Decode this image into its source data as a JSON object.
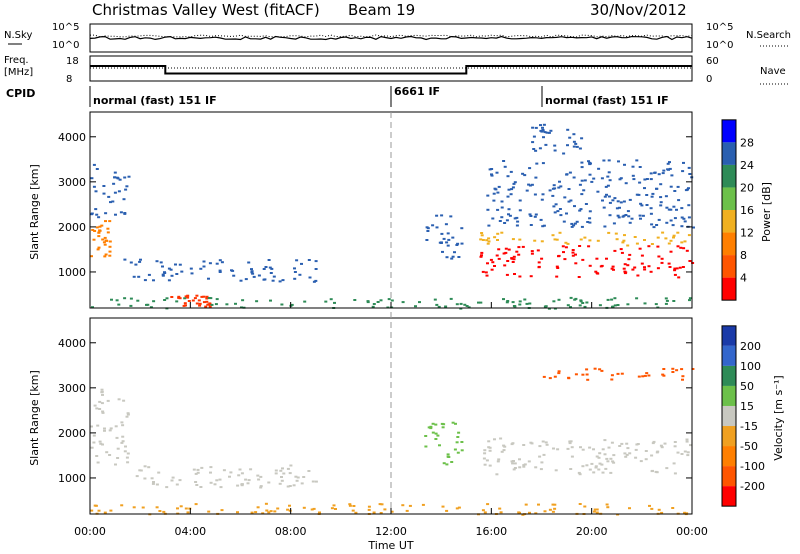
{
  "header": {
    "title": "Christmas Valley West (fitACF)",
    "beam": "Beam 19",
    "date": "30/Nov/2012"
  },
  "summary": {
    "nsky_label": "N.Sky",
    "nsky_ticks": [
      "10^5",
      "10^0"
    ],
    "nsearch_label": "N.Search",
    "nsearch_ticks": [
      "10^5",
      "10^0"
    ],
    "freq_label_line1": "Freq.",
    "freq_label_line2": "[MHz]",
    "freq_ticks": [
      "18",
      "8"
    ],
    "nave_label": "Nave",
    "nave_ticks": [
      "60",
      "0"
    ],
    "cpid_label": "CPID",
    "cpid_segments": [
      {
        "text": "normal (fast) 151 IF",
        "start_hour": 0
      },
      {
        "text": "6661 IF",
        "start_hour": 12
      },
      {
        "text": "normal (fast) 151 IF",
        "start_hour": 18
      }
    ],
    "frequency_profile": [
      [
        0,
        14
      ],
      [
        3,
        14
      ],
      [
        3,
        11
      ],
      [
        15,
        11
      ],
      [
        15,
        14
      ],
      [
        24,
        14
      ]
    ]
  },
  "chart_data": [
    {
      "type": "heatmap",
      "name": "power",
      "ylabel": "Slant Range [km]",
      "yticks": [
        1000,
        2000,
        3000,
        4000
      ],
      "ylim": [
        200,
        4550
      ],
      "xlim": [
        0,
        24
      ],
      "colorbar_label": "Power [dB]",
      "colorbar_ticks": [
        4,
        8,
        12,
        16,
        20,
        24,
        28
      ],
      "colorbar_colors": [
        "#0000ff",
        "#2a5fb0",
        "#2e8b57",
        "#6cc04a",
        "#f0b020",
        "#ff7f00",
        "#ff5500",
        "#ff0000"
      ],
      "regions": [
        {
          "t0": 0.0,
          "t1": 0.8,
          "r0": 1300,
          "r1": 2200,
          "color": "#ff7f00"
        },
        {
          "t0": 0.0,
          "t1": 1.5,
          "r0": 2200,
          "r1": 3400,
          "color": "#2a5fb0"
        },
        {
          "t0": 1.3,
          "t1": 9.0,
          "r0": 800,
          "r1": 1300,
          "color": "#2a5fb0"
        },
        {
          "t0": 3.2,
          "t1": 4.8,
          "r0": 250,
          "r1": 500,
          "color": "#ff3300"
        },
        {
          "t0": 0.0,
          "t1": 24.0,
          "r0": 200,
          "r1": 450,
          "color": "#2e8b57"
        },
        {
          "t0": 13.3,
          "t1": 14.8,
          "r0": 1300,
          "r1": 2300,
          "color": "#2a5fb0"
        },
        {
          "t0": 15.5,
          "t1": 24.0,
          "r0": 900,
          "r1": 1600,
          "color": "#ff0000"
        },
        {
          "t0": 15.5,
          "t1": 24.0,
          "r0": 1600,
          "r1": 1900,
          "color": "#f0b020"
        },
        {
          "t0": 15.8,
          "t1": 24.0,
          "r0": 2000,
          "r1": 3500,
          "color": "#2a5fb0"
        },
        {
          "t0": 17.5,
          "t1": 20.0,
          "r0": 3600,
          "r1": 4300,
          "color": "#2a5fb0"
        }
      ]
    },
    {
      "type": "heatmap",
      "name": "velocity",
      "ylabel": "Slant Range [km]",
      "yticks": [
        1000,
        2000,
        3000,
        4000
      ],
      "ylim": [
        200,
        4550
      ],
      "xlim": [
        0,
        24
      ],
      "xticks": [
        "00:00",
        "04:00",
        "08:00",
        "12:00",
        "16:00",
        "20:00",
        "00:00"
      ],
      "xlabel": "Time UT",
      "colorbar_label": "Velocity [m s⁻¹]",
      "colorbar_ticks": [
        200,
        100,
        50,
        15,
        -15,
        -50,
        -100,
        -200
      ],
      "colorbar_colors": [
        "#1a3aa8",
        "#3366cc",
        "#2e8b57",
        "#6cc04a",
        "#c8c8c0",
        "#f0a020",
        "#ff7f00",
        "#ff5500",
        "#ff0000"
      ],
      "regions": [
        {
          "t0": 0.0,
          "t1": 1.5,
          "r0": 1300,
          "r1": 3000,
          "color": "#c8c8c0"
        },
        {
          "t0": 1.3,
          "t1": 9.0,
          "r0": 800,
          "r1": 1300,
          "color": "#c8c8c0"
        },
        {
          "t0": 0.0,
          "t1": 24.0,
          "r0": 200,
          "r1": 450,
          "color": "#f0a020"
        },
        {
          "t0": 13.3,
          "t1": 14.8,
          "r0": 1300,
          "r1": 2300,
          "color": "#6cc04a"
        },
        {
          "t0": 15.5,
          "t1": 24.0,
          "r0": 1100,
          "r1": 1900,
          "color": "#c8c8c0"
        },
        {
          "t0": 18.0,
          "t1": 24.0,
          "r0": 3200,
          "r1": 3500,
          "color": "#ff5500"
        }
      ]
    }
  ]
}
